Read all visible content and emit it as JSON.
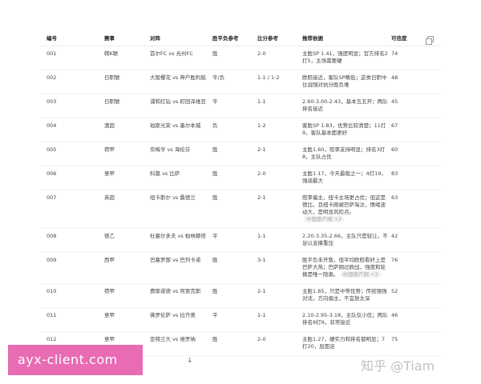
{
  "headers": [
    "编号",
    "赛事",
    "对阵",
    "胜平负参考",
    "比分参考",
    "推荐依据",
    "可信度"
  ],
  "rows": [
    {
      "id": "001",
      "league": "韩K联",
      "match": "首尔FC vs 光州FC",
      "result": "胜",
      "score": "2-0",
      "reason": "主胜SP 1.41，强度明显；官方排名2打5，主场需要硬",
      "conf": "74"
    },
    {
      "id": "002",
      "league": "日职联",
      "match": "大阪樱花 vs 神户胜利船",
      "result": "平/负",
      "score": "1-1 / 1-2",
      "reason": "欧赔接近，客队SP略低；这类日职中位战强对抗分胜负难",
      "conf": "48"
    },
    {
      "id": "003",
      "league": "日职联",
      "match": "浦和红钻 vs 町田泽维亚",
      "result": "平",
      "score": "1-1",
      "reason": "2.60-3.00-2.43，基本五五开；两队排名接近",
      "conf": "45"
    },
    {
      "id": "004",
      "league": "澳超",
      "match": "珀斯光荣 vs 墨尔本城",
      "result": "负",
      "score": "1-2",
      "reason": "客胜SP 1.83，优势比较清楚；11打9，客队基本面更好",
      "conf": "67"
    },
    {
      "id": "005",
      "league": "荷甲",
      "match": "奈梅亨 vs 海伦芬",
      "result": "胜",
      "score": "2-1",
      "reason": "主胜1.60，赔率支持明显；排名3打8，主队占优",
      "conf": "60"
    },
    {
      "id": "006",
      "league": "意甲",
      "match": "科莫 vs 比萨",
      "result": "胜",
      "score": "2-0",
      "reason": "主胜1.17，今天最稳之一；4打19，强弱最大",
      "conf": "83"
    },
    {
      "id": "007",
      "league": "英超",
      "match": "纽卡斯尔 vs 桑德兰",
      "result": "胜",
      "score": "2-1",
      "reason": "赔率偏主，纽卡主场更占优；但这是德比，且纽卡刚被巴萨淘汰，情绪波动大，是明显风险点。",
      "tag": "中国原产网 +2",
      "conf": "63"
    },
    {
      "id": "008",
      "league": "德乙",
      "match": "杜塞尔多夫 vs 柏林赫塔",
      "result": "平",
      "score": "1-1",
      "reason": "2.20-3.35-2.66，主队只是轻让，不足以支撑重压",
      "conf": "42"
    },
    {
      "id": "009",
      "league": "西甲",
      "match": "巴塞罗那 vs 巴列卡诺",
      "result": "胜",
      "score": "3-1",
      "reason": "胜平负未开售，但平均欧赔看好上是巴萨大热；巴萨刚过欧战，强度和轮换是唯一隐患。",
      "tag": "中国原产网 +2",
      "conf": "76"
    },
    {
      "id": "010",
      "league": "荷甲",
      "match": "费耶诺德 vs 阿贾克斯",
      "result": "胜",
      "score": "2-1",
      "reason": "主胜1.85，只是中等优势；传统强强对话，方向偏主，不宜放太深",
      "conf": "52"
    },
    {
      "id": "011",
      "league": "意甲",
      "match": "佛罗伦萨 vs 拉齐奥",
      "result": "平",
      "score": "1-1",
      "reason": "2.10-2.95-3.18，主队仅小优；两队排名8打9，非常接近",
      "conf": "46"
    },
    {
      "id": "012",
      "league": "意甲",
      "match": "亚特兰大 vs 维罗纳",
      "result": "胜",
      "score": "2-0",
      "reason": "主胜1.27，硬实力和排名都明显；7打20，层面足",
      "conf": "75"
    }
  ],
  "watermark": "知乎 @Tiam",
  "banner": "ayx-client.com",
  "icons": {
    "copy": "copy-icon",
    "scroll": "arrow-down-icon"
  }
}
